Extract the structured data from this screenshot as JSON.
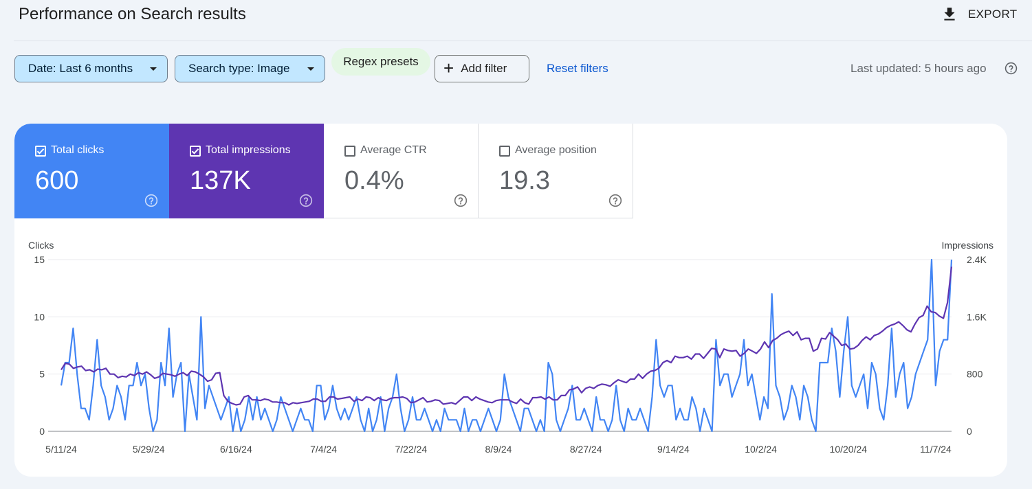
{
  "header": {
    "title": "Performance on Search results",
    "export_label": "EXPORT"
  },
  "filters": {
    "date_chip": "Date: Last 6 months",
    "type_chip": "Search type: Image",
    "regex_chip": "Regex presets",
    "add_filter": "Add filter",
    "reset": "Reset filters",
    "last_updated": "Last updated: 5 hours ago"
  },
  "metrics": [
    {
      "label": "Total clicks",
      "value": "600",
      "checked": true,
      "color": "#4285f4"
    },
    {
      "label": "Total impressions",
      "value": "137K",
      "checked": true,
      "color": "#5e35b1"
    },
    {
      "label": "Average CTR",
      "value": "0.4%",
      "checked": false
    },
    {
      "label": "Average position",
      "value": "19.3",
      "checked": false
    }
  ],
  "chart_data": {
    "type": "line",
    "left_axis": {
      "label": "Clicks",
      "ticks": [
        "0",
        "5",
        "10",
        "15"
      ],
      "range": [
        0,
        15
      ]
    },
    "right_axis": {
      "label": "Impressions",
      "ticks": [
        "0",
        "800",
        "1.6K",
        "2.4K"
      ],
      "range": [
        0,
        2400
      ]
    },
    "x_labels": [
      "5/11/24",
      "5/29/24",
      "6/16/24",
      "7/4/24",
      "7/22/24",
      "8/9/24",
      "8/27/24",
      "9/14/24",
      "10/2/24",
      "10/20/24",
      "11/7/24"
    ],
    "x_range": [
      "5/11/24",
      "11/10/24"
    ],
    "grid": true,
    "series": [
      {
        "name": "Clicks",
        "axis": "left",
        "color": "#4285f4",
        "values": [
          4,
          6,
          6,
          9,
          5,
          2,
          2,
          1,
          4,
          8,
          4,
          3,
          1,
          2,
          4,
          3,
          1,
          4,
          4,
          6,
          4,
          5,
          2,
          0,
          1,
          6,
          4,
          9,
          3,
          5,
          6,
          0,
          5,
          3,
          1,
          10,
          2,
          4,
          3,
          2,
          1,
          2,
          3,
          0,
          2,
          0,
          1,
          3,
          1,
          3,
          1,
          2,
          1,
          0,
          1,
          3,
          2,
          1,
          0,
          1,
          2,
          1,
          1,
          0,
          4,
          4,
          1,
          2,
          4,
          2,
          1,
          2,
          1,
          2,
          3,
          1,
          0,
          2,
          0,
          1,
          3,
          0,
          2,
          3,
          5,
          2,
          0,
          1,
          3,
          1,
          1,
          2,
          1,
          0,
          1,
          0,
          2,
          1,
          1,
          1,
          0,
          2,
          0,
          1,
          1,
          0,
          1,
          2,
          1,
          0,
          1,
          5,
          3,
          2,
          1,
          0,
          2,
          2,
          1,
          0,
          1,
          0,
          6,
          5,
          1,
          0,
          1,
          2,
          4,
          1,
          1,
          2,
          1,
          0,
          3,
          1,
          1,
          0,
          1,
          4,
          1,
          0,
          2,
          1,
          1,
          2,
          1,
          0,
          3,
          8,
          4,
          3,
          4,
          4,
          1,
          2,
          1,
          1,
          3,
          2,
          0,
          2,
          1,
          0,
          8,
          4,
          5,
          5,
          3,
          4,
          5,
          8,
          4,
          5,
          3,
          1,
          3,
          2,
          12,
          4,
          3,
          1,
          2,
          4,
          3,
          1,
          4,
          3,
          1,
          0,
          6,
          6,
          6,
          9,
          7,
          3,
          7,
          10,
          4,
          3,
          4,
          5,
          2,
          6,
          5,
          2,
          1,
          4,
          9,
          3,
          5,
          6,
          2,
          3,
          5,
          6,
          7,
          8,
          15,
          4,
          7,
          8,
          8,
          15
        ]
      },
      {
        "name": "Impressions",
        "axis": "right",
        "color": "#5e35b1",
        "values": [
          860,
          950,
          940,
          880,
          900,
          910,
          850,
          860,
          830,
          870,
          860,
          880,
          800,
          800,
          750,
          770,
          760,
          800,
          780,
          820,
          800,
          830,
          790,
          740,
          760,
          810,
          800,
          790,
          770,
          800,
          820,
          780,
          840,
          830,
          800,
          760,
          700,
          720,
          810,
          820,
          500,
          420,
          390,
          370,
          380,
          480,
          500,
          440,
          440,
          430,
          450,
          440,
          410,
          410,
          400,
          400,
          370,
          400,
          390,
          400,
          410,
          420,
          450,
          450,
          420,
          420,
          480,
          480,
          450,
          460,
          470,
          480,
          420,
          450,
          430,
          480,
          470,
          430,
          470,
          440,
          430,
          460,
          470,
          470,
          480,
          460,
          400,
          410,
          440,
          470,
          410,
          420,
          440,
          430,
          380,
          390,
          400,
          380,
          430,
          480,
          480,
          430,
          480,
          450,
          430,
          410,
          400,
          430,
          440,
          440,
          440,
          410,
          390,
          450,
          400,
          380,
          470,
          470,
          480,
          450,
          480,
          440,
          440,
          500,
          500,
          580,
          590,
          620,
          540,
          600,
          620,
          600,
          640,
          660,
          650,
          630,
          680,
          720,
          700,
          680,
          730,
          730,
          800,
          740,
          800,
          840,
          850,
          880,
          960,
          990,
          960,
          1050,
          1030,
          1030,
          1050,
          1010,
          1080,
          1080,
          1020,
          1090,
          1160,
          1150,
          1030,
          1150,
          1130,
          1120,
          1130,
          1050,
          1090,
          1150,
          1120,
          1090,
          1150,
          1250,
          1170,
          1270,
          1300,
          1350,
          1380,
          1400,
          1340,
          1390,
          1280,
          1300,
          1300,
          1120,
          1150,
          1300,
          1290,
          1380,
          1330,
          1280,
          1200,
          1220,
          1150,
          1160,
          1200,
          1270,
          1320,
          1280,
          1340,
          1360,
          1400,
          1450,
          1480,
          1500,
          1530,
          1480,
          1420,
          1390,
          1500,
          1590,
          1620,
          1750,
          1670,
          1660,
          1610,
          1580,
          1800,
          2300
        ]
      }
    ]
  }
}
